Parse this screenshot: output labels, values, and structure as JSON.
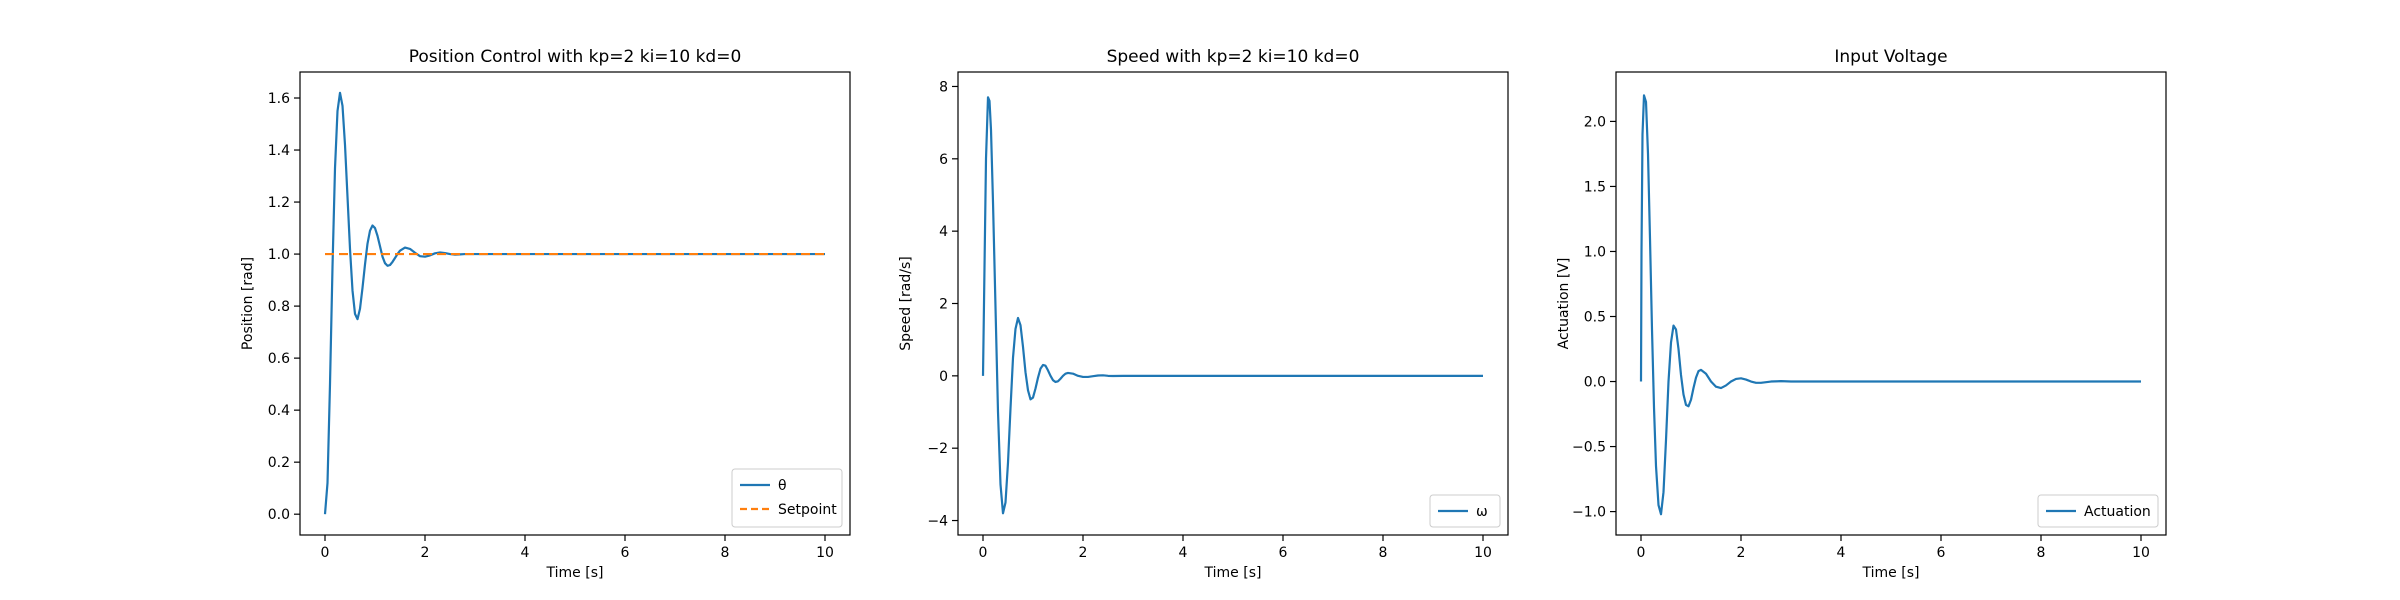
{
  "chart_data": [
    {
      "type": "line",
      "title": "Position Control with kp=2 ki=10 kd=0",
      "xlabel": "Time [s]",
      "ylabel": "Position [rad]",
      "xlim": [
        -0.5,
        10.5
      ],
      "ylim": [
        -0.08,
        1.7
      ],
      "xticks": [
        0,
        2,
        4,
        6,
        8,
        10
      ],
      "xtick_labels": [
        "0",
        "2",
        "4",
        "6",
        "8",
        "10"
      ],
      "yticks": [
        0.0,
        0.2,
        0.4,
        0.6,
        0.8,
        1.0,
        1.2,
        1.4,
        1.6
      ],
      "ytick_labels": [
        "0.0",
        "0.2",
        "0.4",
        "0.6",
        "0.8",
        "1.0",
        "1.2",
        "1.4",
        "1.6"
      ],
      "legend_position": "lower-right",
      "grid": false,
      "series": [
        {
          "name": "θ",
          "color": "#1f77b4",
          "style": "solid",
          "x": [
            0,
            0.05,
            0.1,
            0.15,
            0.2,
            0.25,
            0.3,
            0.35,
            0.4,
            0.45,
            0.5,
            0.55,
            0.6,
            0.65,
            0.7,
            0.75,
            0.8,
            0.85,
            0.9,
            0.95,
            1.0,
            1.05,
            1.1,
            1.15,
            1.2,
            1.25,
            1.3,
            1.35,
            1.4,
            1.45,
            1.5,
            1.6,
            1.7,
            1.8,
            1.9,
            2.0,
            2.1,
            2.2,
            2.3,
            2.4,
            2.5,
            2.6,
            2.7,
            2.8,
            3.0,
            3.5,
            4,
            5,
            6,
            7,
            8,
            9,
            10
          ],
          "y": [
            0.0,
            0.12,
            0.5,
            0.95,
            1.33,
            1.55,
            1.62,
            1.57,
            1.42,
            1.22,
            1.02,
            0.86,
            0.77,
            0.75,
            0.79,
            0.87,
            0.96,
            1.04,
            1.09,
            1.11,
            1.1,
            1.07,
            1.03,
            0.99,
            0.965,
            0.955,
            0.958,
            0.97,
            0.985,
            1.0,
            1.013,
            1.025,
            1.02,
            1.005,
            0.992,
            0.99,
            0.995,
            1.003,
            1.006,
            1.004,
            1.0,
            0.998,
            0.999,
            1.0,
            1.0,
            1.0,
            1.0,
            1.0,
            1.0,
            1.0,
            1.0,
            1.0,
            1.0
          ]
        },
        {
          "name": "Setpoint",
          "color": "#ff7f0e",
          "style": "dashed",
          "x": [
            0,
            10
          ],
          "y": [
            1.0,
            1.0
          ]
        }
      ]
    },
    {
      "type": "line",
      "title": "Speed with kp=2 ki=10 kd=0",
      "xlabel": "Time [s]",
      "ylabel": "Speed [rad/s]",
      "xlim": [
        -0.5,
        10.5
      ],
      "ylim": [
        -4.4,
        8.4
      ],
      "xticks": [
        0,
        2,
        4,
        6,
        8,
        10
      ],
      "xtick_labels": [
        "0",
        "2",
        "4",
        "6",
        "8",
        "10"
      ],
      "yticks": [
        -4,
        -2,
        0,
        2,
        4,
        6,
        8
      ],
      "ytick_labels": [
        "−4",
        "−2",
        "0",
        "2",
        "4",
        "6",
        "8"
      ],
      "legend_position": "lower-right",
      "grid": false,
      "series": [
        {
          "name": "ω",
          "color": "#1f77b4",
          "style": "solid",
          "x": [
            0,
            0.03,
            0.06,
            0.1,
            0.13,
            0.16,
            0.2,
            0.25,
            0.3,
            0.35,
            0.4,
            0.45,
            0.5,
            0.55,
            0.6,
            0.65,
            0.7,
            0.75,
            0.8,
            0.85,
            0.9,
            0.95,
            1.0,
            1.05,
            1.1,
            1.15,
            1.2,
            1.25,
            1.3,
            1.35,
            1.4,
            1.45,
            1.5,
            1.55,
            1.6,
            1.65,
            1.7,
            1.8,
            1.9,
            2.0,
            2.1,
            2.2,
            2.3,
            2.4,
            2.5,
            2.6,
            2.8,
            3.0,
            3.5,
            4,
            5,
            6,
            7,
            8,
            9,
            10
          ],
          "y": [
            0.0,
            3.0,
            6.0,
            7.7,
            7.6,
            6.8,
            4.8,
            1.9,
            -1.0,
            -3.0,
            -3.8,
            -3.5,
            -2.4,
            -0.9,
            0.5,
            1.3,
            1.6,
            1.4,
            0.8,
            0.1,
            -0.4,
            -0.65,
            -0.6,
            -0.35,
            -0.05,
            0.2,
            0.3,
            0.28,
            0.15,
            0.0,
            -0.12,
            -0.17,
            -0.15,
            -0.08,
            0.0,
            0.06,
            0.08,
            0.06,
            0.0,
            -0.03,
            -0.03,
            -0.01,
            0.01,
            0.015,
            0.0,
            -0.005,
            0.0,
            0.0,
            0.0,
            0.0,
            0.0,
            0.0,
            0.0,
            0.0,
            0.0,
            0.0
          ]
        }
      ]
    },
    {
      "type": "line",
      "title": "Input Voltage",
      "xlabel": "Time [s]",
      "ylabel": "Actuation [V]",
      "xlim": [
        -0.5,
        10.5
      ],
      "ylim": [
        -1.18,
        2.38
      ],
      "xticks": [
        0,
        2,
        4,
        6,
        8,
        10
      ],
      "xtick_labels": [
        "0",
        "2",
        "4",
        "6",
        "8",
        "10"
      ],
      "yticks": [
        -1.0,
        -0.5,
        0.0,
        0.5,
        1.0,
        1.5,
        2.0
      ],
      "ytick_labels": [
        "−1.0",
        "−0.5",
        "0.0",
        "0.5",
        "1.0",
        "1.5",
        "2.0"
      ],
      "legend_position": "lower-right",
      "grid": false,
      "series": [
        {
          "name": "Actuation",
          "color": "#1f77b4",
          "style": "solid",
          "x": [
            0,
            0.01,
            0.03,
            0.06,
            0.1,
            0.14,
            0.18,
            0.22,
            0.26,
            0.3,
            0.35,
            0.4,
            0.45,
            0.5,
            0.55,
            0.6,
            0.65,
            0.7,
            0.75,
            0.8,
            0.85,
            0.9,
            0.95,
            1.0,
            1.05,
            1.1,
            1.15,
            1.2,
            1.3,
            1.4,
            1.5,
            1.6,
            1.7,
            1.8,
            1.9,
            2.0,
            2.1,
            2.2,
            2.3,
            2.4,
            2.6,
            2.8,
            3.0,
            3.5,
            4,
            5,
            6,
            7,
            8,
            9,
            10
          ],
          "y": [
            0.0,
            1.0,
            1.9,
            2.2,
            2.15,
            1.75,
            1.1,
            0.4,
            -0.2,
            -0.65,
            -0.95,
            -1.02,
            -0.85,
            -0.45,
            0.0,
            0.3,
            0.43,
            0.4,
            0.25,
            0.05,
            -0.1,
            -0.18,
            -0.19,
            -0.14,
            -0.05,
            0.03,
            0.08,
            0.09,
            0.06,
            0.0,
            -0.04,
            -0.05,
            -0.03,
            0.0,
            0.02,
            0.025,
            0.015,
            0.0,
            -0.01,
            -0.01,
            0.0,
            0.003,
            0.0,
            0.0,
            0.0,
            0.0,
            0.0,
            0.0,
            0.0,
            0.0,
            0.0
          ]
        }
      ]
    }
  ]
}
